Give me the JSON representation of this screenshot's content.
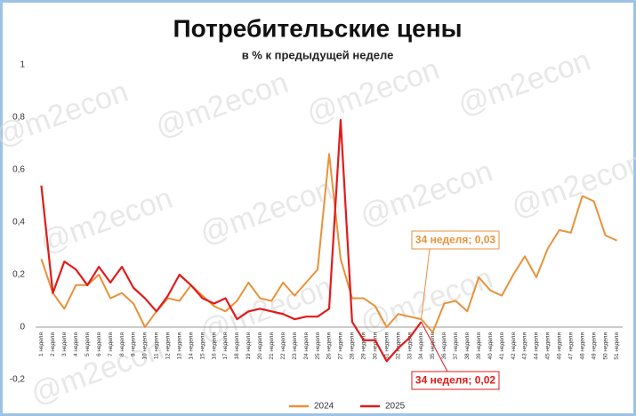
{
  "chart_data": {
    "type": "line",
    "title": "Потребительские цены",
    "subtitle": "в % к предыдущей неделе",
    "watermark": "@m2econ",
    "categories": [
      "1 неделя",
      "2 неделя",
      "3 неделя",
      "4 неделя",
      "5 неделя",
      "6 неделя",
      "7 неделя",
      "8 неделя",
      "9 неделя",
      "10 неделя",
      "11 неделя",
      "12 неделя",
      "13 неделя",
      "14 неделя",
      "15 неделя",
      "16 неделя",
      "17 неделя",
      "18 неделя",
      "19 неделя",
      "20 неделя",
      "21 неделя",
      "22 неделя",
      "23 неделя",
      "24 неделя",
      "25 неделя",
      "26 неделя",
      "27 неделя",
      "28 неделя",
      "29 неделя",
      "30 неделя",
      "31 неделя",
      "32 неделя",
      "33 неделя",
      "34 неделя",
      "35 неделя",
      "36 неделя",
      "37 неделя",
      "38 неделя",
      "39 неделя",
      "40 неделя",
      "41 неделя",
      "42 неделя",
      "43 неделя",
      "44 неделя",
      "45 неделя",
      "46 неделя",
      "47 неделя",
      "48 неделя",
      "49 неделя",
      "50 неделя",
      "51 неделя"
    ],
    "series": [
      {
        "name": "2024",
        "color": "#e8923a",
        "values": [
          0.26,
          0.13,
          0.07,
          0.16,
          0.16,
          0.2,
          0.11,
          0.13,
          0.09,
          0.0,
          0.06,
          0.11,
          0.1,
          0.16,
          0.12,
          0.08,
          0.06,
          0.1,
          0.17,
          0.11,
          0.1,
          0.17,
          0.12,
          0.17,
          0.22,
          0.66,
          0.26,
          0.11,
          0.11,
          0.08,
          0.0,
          0.05,
          0.04,
          0.03,
          -0.02,
          0.09,
          0.1,
          0.06,
          0.19,
          0.14,
          0.12,
          0.2,
          0.27,
          0.19,
          0.3,
          0.37,
          0.36,
          0.5,
          0.48,
          0.35,
          0.33
        ]
      },
      {
        "name": "2025",
        "color": "#e01b1b",
        "values": [
          0.54,
          0.13,
          0.25,
          0.22,
          0.16,
          0.23,
          0.17,
          0.23,
          0.15,
          0.11,
          0.06,
          0.12,
          0.2,
          0.16,
          0.11,
          0.09,
          0.11,
          0.03,
          0.06,
          0.07,
          0.06,
          0.05,
          0.03,
          0.04,
          0.04,
          0.07,
          0.79,
          0.02,
          -0.05,
          -0.05,
          -0.13,
          -0.08,
          -0.04,
          0.02,
          null,
          null,
          null,
          null,
          null,
          null,
          null,
          null,
          null,
          null,
          null,
          null,
          null,
          null,
          null,
          null,
          null
        ]
      }
    ],
    "annotations": [
      {
        "text": "34 неделя; 0,03",
        "series": 0,
        "index": 33
      },
      {
        "text": "34 неделя; 0,02",
        "series": 1,
        "index": 33
      }
    ],
    "ylim": [
      -0.2,
      1
    ],
    "yticks": [
      {
        "value": -0.2,
        "label": "-0,2"
      },
      0,
      {
        "value": 0.2,
        "label": "0,2"
      },
      {
        "value": 0.4,
        "label": "0,4"
      },
      {
        "value": 0.6,
        "label": "0,6"
      },
      {
        "value": 0.8,
        "label": "0,8"
      },
      1
    ],
    "grid": false,
    "legend": "bottom"
  }
}
